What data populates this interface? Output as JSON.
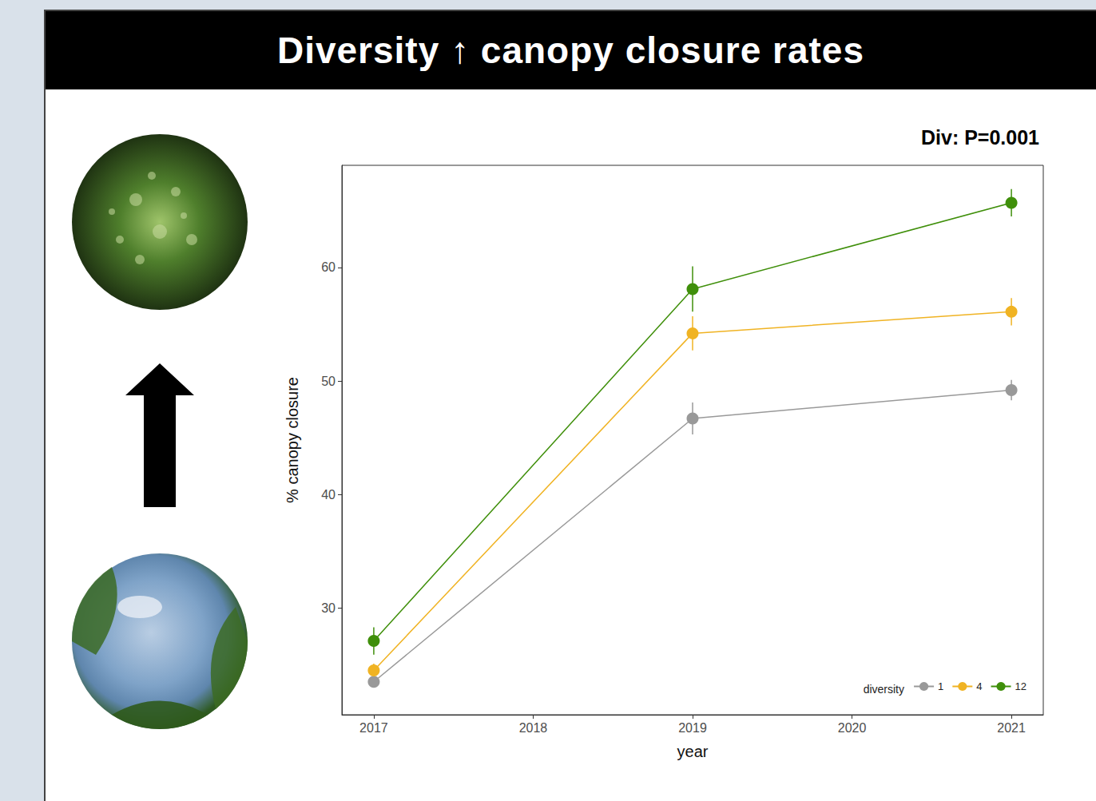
{
  "chart_data": {
    "type": "line",
    "title": "Diversity ↑ canopy closure rates",
    "annotation": "Div: P=0.001",
    "x_label": "year",
    "y_label": "% canopy closure",
    "x": [
      2017,
      2019,
      2021
    ],
    "series": [
      {
        "name": "1",
        "color": "#999999",
        "values": [
          23.5,
          46.7,
          49.2
        ],
        "errors": [
          0.5,
          1.4,
          0.9
        ]
      },
      {
        "name": "4",
        "color": "#f0b323",
        "values": [
          24.5,
          54.2,
          56.1
        ],
        "errors": [
          0.6,
          1.5,
          1.2
        ]
      },
      {
        "name": "12",
        "color": "#3f8f0a",
        "values": [
          27.1,
          58.1,
          65.7
        ],
        "errors": [
          1.2,
          2.0,
          1.2
        ]
      }
    ],
    "xlim": [
      2016.8,
      2021.2
    ],
    "xticks": [
      2017,
      2018,
      2019,
      2020,
      2021
    ],
    "ylim": [
      20.6,
      69
    ],
    "yticks": [
      30,
      40,
      50,
      60
    ],
    "grid": false,
    "legend": "bottom right",
    "legend_title": "diversity",
    "marker": "circle"
  }
}
